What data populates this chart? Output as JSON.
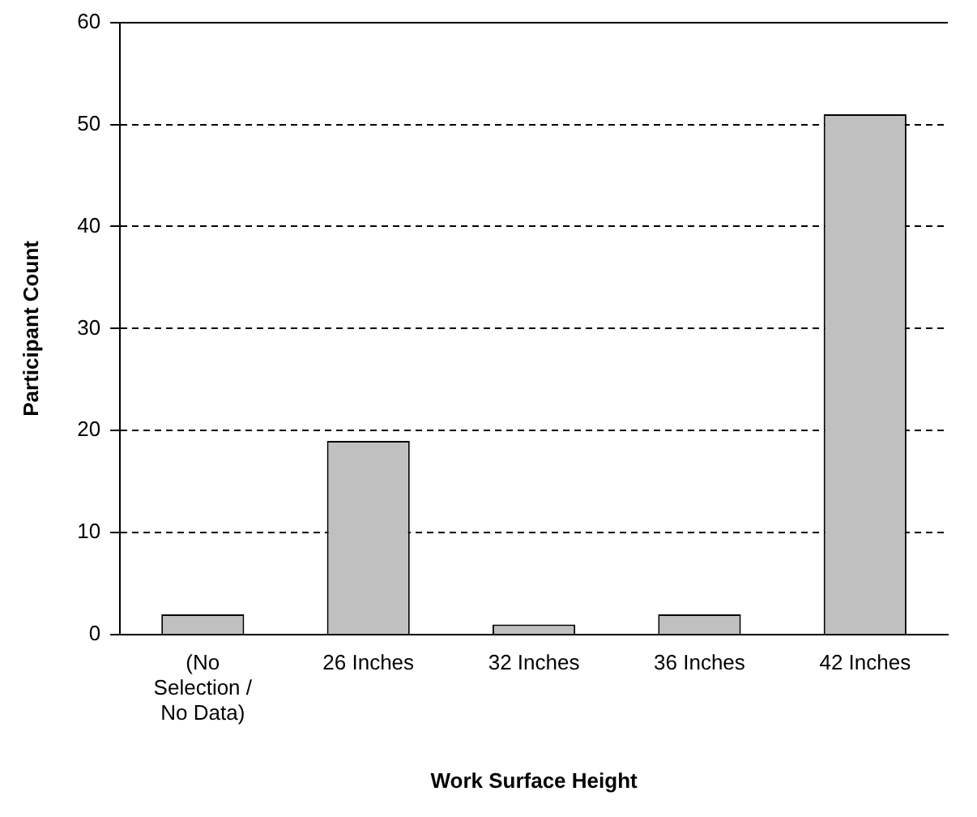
{
  "chart_data": {
    "type": "bar",
    "xlabel": "Work Surface Height",
    "ylabel": "Participant Count",
    "categories": [
      "(No Selection / No Data)",
      "26 Inches",
      "32 Inches",
      "36 Inches",
      "42 Inches"
    ],
    "values": [
      2,
      19,
      1,
      2,
      51
    ],
    "color": "#c0c0c0",
    "ylim": [
      0,
      60
    ],
    "yticks": [
      0,
      10,
      20,
      30,
      40,
      50,
      60
    ],
    "grid": "y",
    "legend": false
  }
}
